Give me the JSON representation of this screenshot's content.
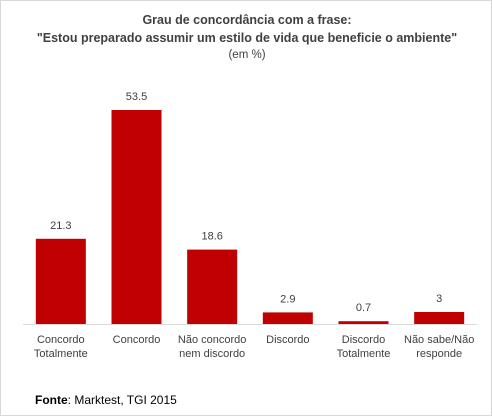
{
  "chart_data": {
    "type": "bar",
    "title_line1": "Grau de concordância com a frase:",
    "title_line2": "\"Estou preparado assumir um estilo de vida que beneficie o ambiente\"",
    "subtitle": "(em %)",
    "categories": [
      [
        "Concordo",
        "Totalmente"
      ],
      [
        "Concordo"
      ],
      [
        "Não concordo",
        "nem discordo"
      ],
      [
        "Discordo"
      ],
      [
        "Discordo",
        "Totalmente"
      ],
      [
        "Não sabe/Não",
        "responde"
      ]
    ],
    "values": [
      21.3,
      53.5,
      18.6,
      2.9,
      0.7,
      3
    ],
    "value_labels": [
      "21.3",
      "53.5",
      "18.6",
      "2.9",
      "0.7",
      "3"
    ],
    "ylim": [
      0,
      60
    ],
    "grid": false,
    "legend": "none",
    "bar_color": "#c00000",
    "axis_color": "#d9d9d9"
  },
  "source": {
    "label": "Fonte",
    "text": ": Marktest, TGI 2015"
  }
}
